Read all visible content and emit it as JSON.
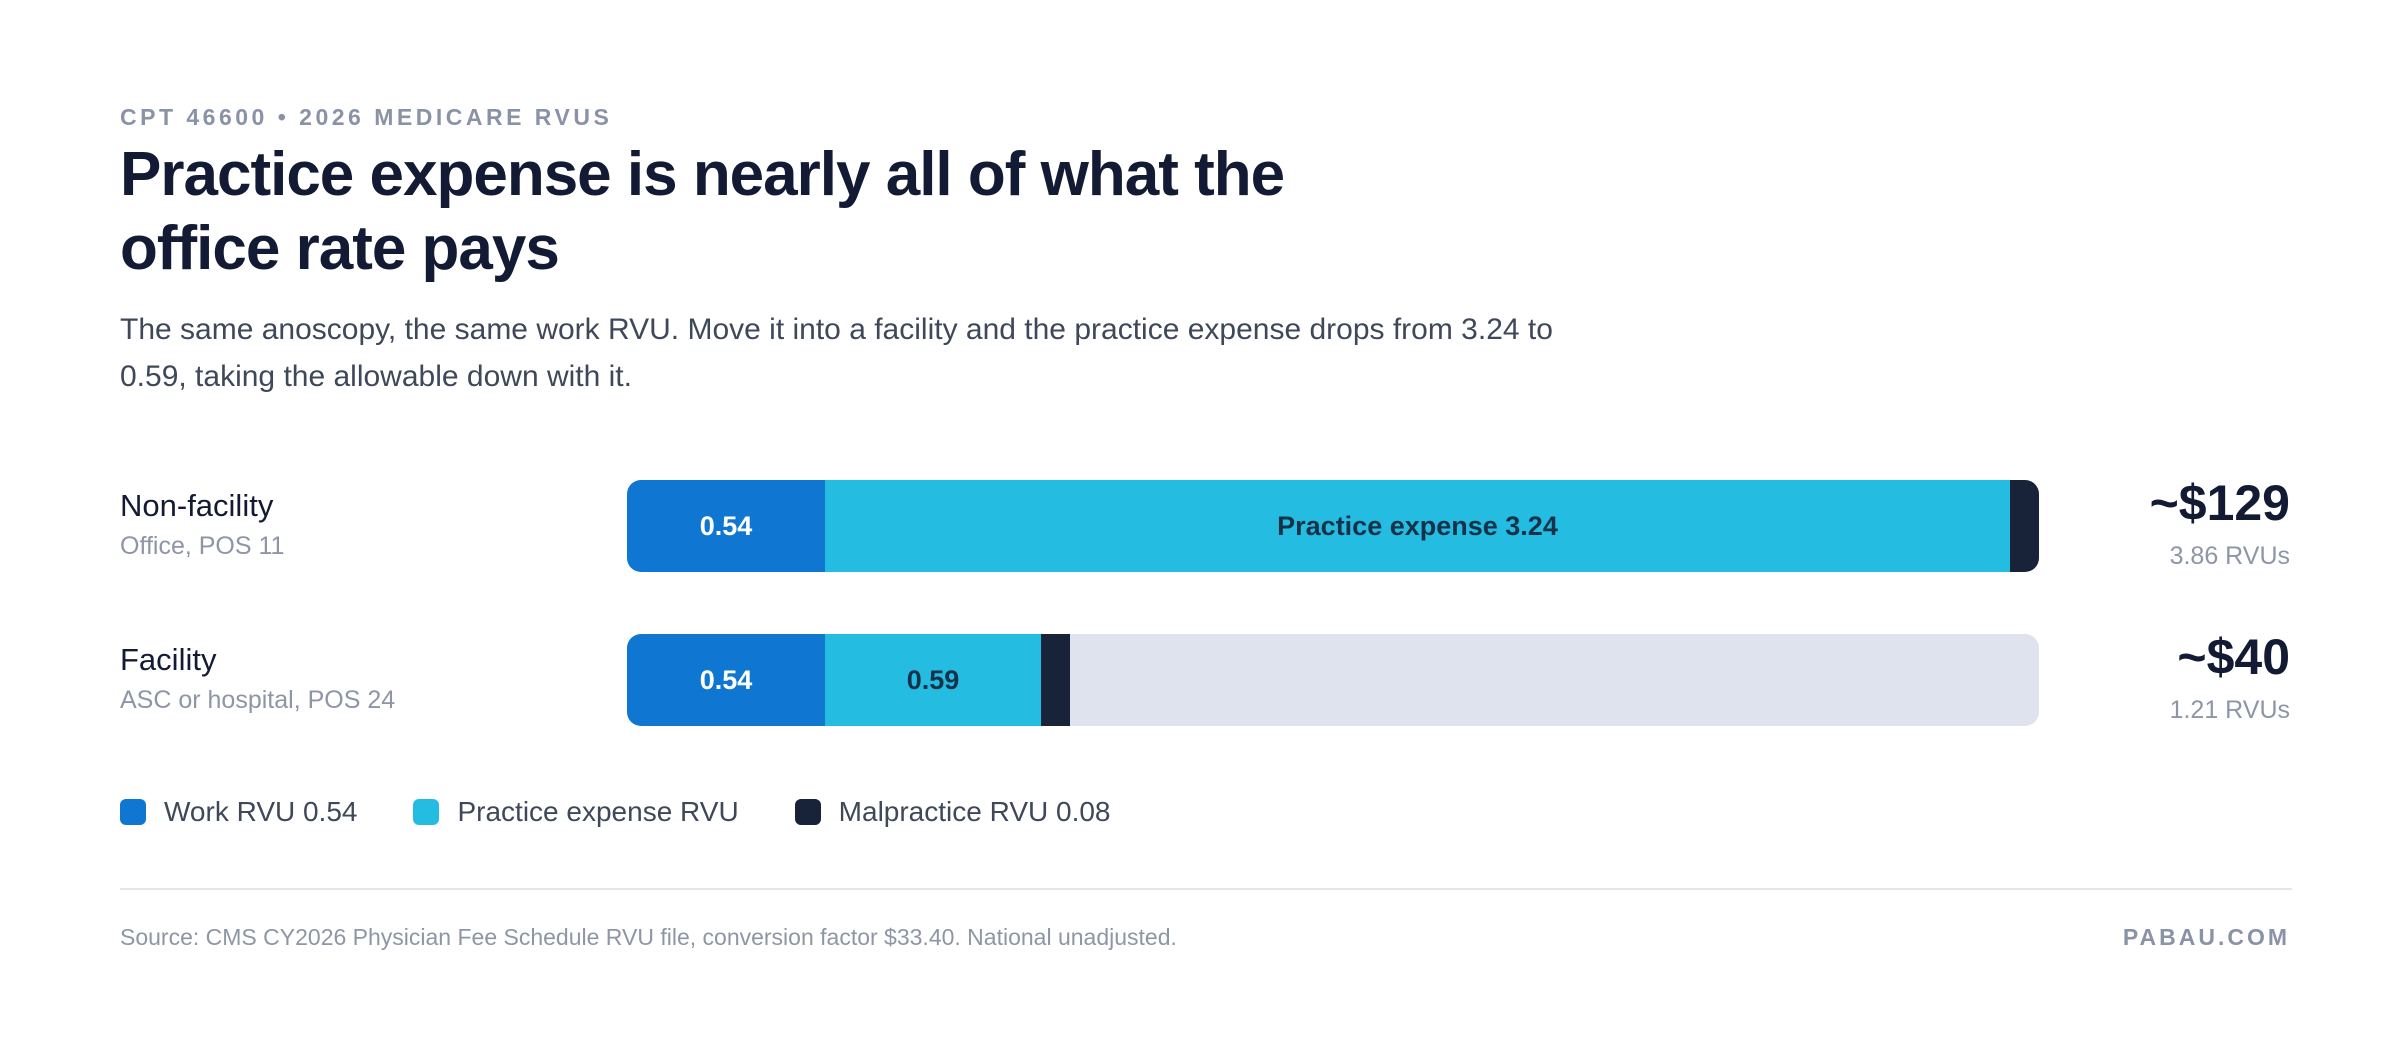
{
  "header": {
    "eyebrow": "CPT 46600 • 2026 MEDICARE RVUS",
    "title": "Practice expense is nearly all of what the office rate pays",
    "subtitle": "The same anoscopy, the same work RVU. Move it into a facility and the practice expense drops from 3.24 to 0.59, taking the allowable down with it."
  },
  "chart_data": {
    "type": "bar",
    "orientation": "horizontal",
    "stacked": true,
    "xlim": [
      0,
      3.86
    ],
    "categories": [
      {
        "label": "Non-facility",
        "sublabel": "Office, POS 11",
        "total_label": "~$129",
        "total_sub": "3.86 RVUs"
      },
      {
        "label": "Facility",
        "sublabel": "ASC or hospital, POS 24",
        "total_label": "~$40",
        "total_sub": "1.21 RVUs"
      }
    ],
    "series": [
      {
        "name": "Work RVU 0.54",
        "color": "#0f77d1",
        "values": [
          0.54,
          0.54
        ],
        "labels": [
          "0.54",
          "0.54"
        ]
      },
      {
        "name": "Practice expense RVU",
        "color": "#25bce2",
        "values": [
          3.24,
          0.59
        ],
        "labels": [
          "Practice expense 3.24",
          "0.59"
        ]
      },
      {
        "name": "Malpractice RVU 0.08",
        "color": "#182239",
        "values": [
          0.08,
          0.08
        ],
        "labels": [
          "",
          ""
        ]
      }
    ],
    "empty_color": "#dfe3ee"
  },
  "legend": [
    {
      "label": "Work RVU 0.54",
      "color": "#0f77d1"
    },
    {
      "label": "Practice expense RVU",
      "color": "#25bce2"
    },
    {
      "label": "Malpractice RVU 0.08",
      "color": "#182239"
    }
  ],
  "footer": {
    "source": "Source: CMS CY2026 Physician Fee Schedule RVU file, conversion factor $33.40. National unadjusted.",
    "brand": "PABAU.COM"
  }
}
